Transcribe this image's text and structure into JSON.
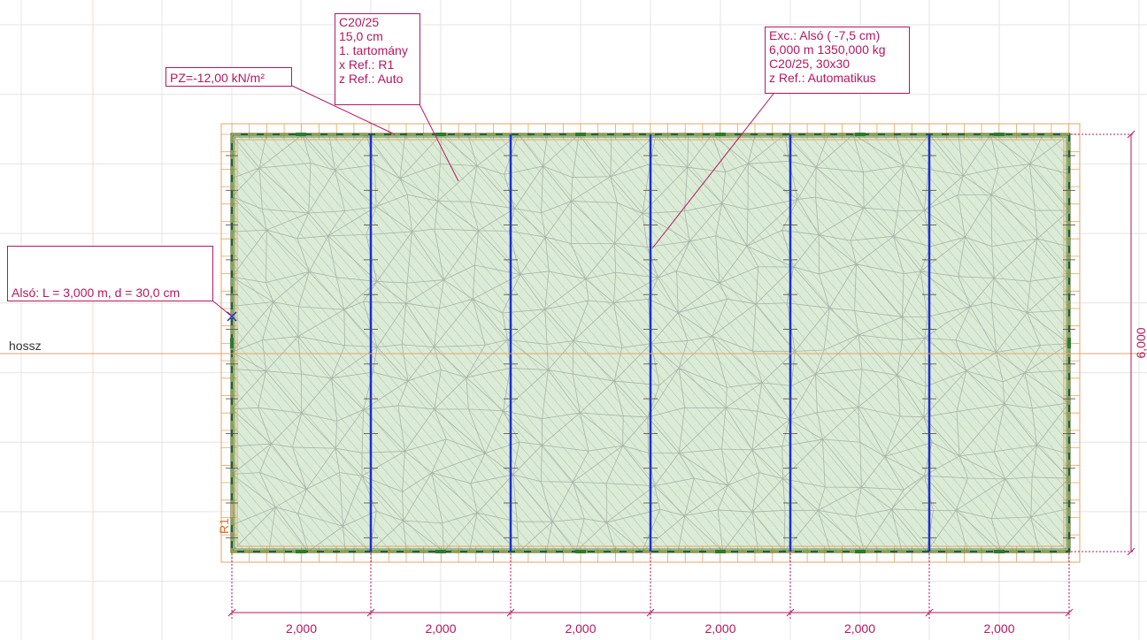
{
  "labels": {
    "load": "PZ=-12,00 kN/m²",
    "line_label": "hossz",
    "support_label": "R1"
  },
  "slab_callout": {
    "lines": [
      "C20/25",
      "15,0 cm",
      "1. tartomány",
      "x Ref.: R1",
      "z Ref.: Auto"
    ]
  },
  "beam_callout": {
    "lines": [
      "Exc.: Alsó ( -7,5 cm)",
      "6,000 m  1350,000 kg",
      "C20/25, 30x30",
      "z Ref.: Automatikus"
    ]
  },
  "wall_callout": {
    "text": "Alsó: L = 3,000 m, d = 30,0 cm"
  },
  "dimensions": {
    "horizontal": [
      "2,000",
      "2,000",
      "2,000",
      "2,000",
      "2,000",
      "2,000"
    ],
    "vertical": "6,000"
  },
  "colors": {
    "slab_fill": "#dcebd7",
    "hatch": "#8fbf8a",
    "mesh": "#b0b8b0",
    "beam": "#1a2fd6",
    "annotation": "#b5175f",
    "grid": "#e2e2e2",
    "axis": "#e3a566",
    "edge": "#2f5d2a"
  }
}
